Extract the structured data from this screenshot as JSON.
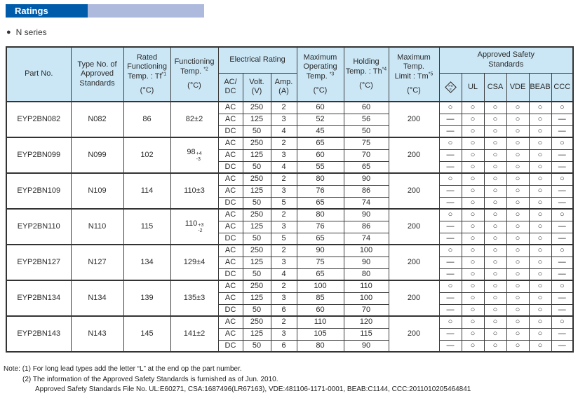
{
  "title_bar": {
    "label": "Ratings"
  },
  "series": {
    "bullet": "●",
    "label": "N series"
  },
  "table": {
    "header": {
      "part_no": "Part No.",
      "type_no": {
        "l1": "Type No. of",
        "l2": "Approved",
        "l3": "Standards"
      },
      "rated": {
        "l1": "Rated",
        "l2": "Functioning",
        "l3": "Temp. : Tf",
        "sup": "*1",
        "unit": "(°C)"
      },
      "functioning": {
        "l1": "Functioning",
        "l2": "Temp.",
        "sup": "*2",
        "unit": "(°C)"
      },
      "electrical": {
        "group": "Electrical Rating",
        "acdc_l1": "AC/",
        "acdc_l2": "DC",
        "volt_l1": "Volt.",
        "volt_l2": "(V)",
        "amp_l1": "Amp.",
        "amp_l2": "(A)"
      },
      "max_operating": {
        "l1": "Maximum",
        "l2": "Operating",
        "l3": "Temp.",
        "sup": "*3",
        "unit": "(°C)"
      },
      "holding": {
        "l1": "Holding",
        "l2": "Temp. : Th",
        "sup": "*4",
        "unit": "(°C)"
      },
      "max_limit": {
        "l1": "Maximum",
        "l2": "Temp.",
        "l3": "Limit : Tm",
        "sup": "*5",
        "unit": "(°C)"
      },
      "safety": {
        "group_l1": "Approved Safety",
        "group_l2": "Standards",
        "pse_l1": "PS",
        "pse_l2": "E",
        "cols": [
          "UL",
          "CSA",
          "VDE",
          "BEAB",
          "CCC"
        ],
        "col_keys": [
          "pse",
          "ul",
          "csa",
          "vde",
          "beab",
          "ccc"
        ]
      }
    },
    "symbols": {
      "approved": "○",
      "not_approved": "—"
    },
    "rows": [
      {
        "part": "EYP2BN082",
        "type": "N082",
        "rated": "86",
        "functioning": {
          "text": "82±2"
        },
        "limit": "200",
        "sub": [
          {
            "acdc": "AC",
            "volt": "250",
            "amp": "2",
            "max_op": "60",
            "holding": "60",
            "marks": [
              "○",
              "○",
              "○",
              "○",
              "○",
              "○"
            ]
          },
          {
            "acdc": "AC",
            "volt": "125",
            "amp": "3",
            "max_op": "52",
            "holding": "56",
            "marks": [
              "—",
              "○",
              "○",
              "○",
              "○",
              "—"
            ]
          },
          {
            "acdc": "DC",
            "volt": "50",
            "amp": "4",
            "max_op": "45",
            "holding": "50",
            "marks": [
              "—",
              "○",
              "○",
              "○",
              "○",
              "—"
            ]
          }
        ]
      },
      {
        "part": "EYP2BN099",
        "type": "N099",
        "rated": "102",
        "functioning": {
          "base": "98",
          "plus": "+4",
          "minus": "-3"
        },
        "limit": "200",
        "sub": [
          {
            "acdc": "AC",
            "volt": "250",
            "amp": "2",
            "max_op": "65",
            "holding": "75",
            "marks": [
              "○",
              "○",
              "○",
              "○",
              "○",
              "○"
            ]
          },
          {
            "acdc": "AC",
            "volt": "125",
            "amp": "3",
            "max_op": "60",
            "holding": "70",
            "marks": [
              "—",
              "○",
              "○",
              "○",
              "○",
              "—"
            ]
          },
          {
            "acdc": "DC",
            "volt": "50",
            "amp": "4",
            "max_op": "55",
            "holding": "65",
            "marks": [
              "—",
              "○",
              "○",
              "○",
              "○",
              "—"
            ]
          }
        ]
      },
      {
        "part": "EYP2BN109",
        "type": "N109",
        "rated": "114",
        "functioning": {
          "text": "110±3"
        },
        "limit": "200",
        "sub": [
          {
            "acdc": "AC",
            "volt": "250",
            "amp": "2",
            "max_op": "80",
            "holding": "90",
            "marks": [
              "○",
              "○",
              "○",
              "○",
              "○",
              "○"
            ]
          },
          {
            "acdc": "AC",
            "volt": "125",
            "amp": "3",
            "max_op": "76",
            "holding": "86",
            "marks": [
              "—",
              "○",
              "○",
              "○",
              "○",
              "—"
            ]
          },
          {
            "acdc": "DC",
            "volt": "50",
            "amp": "5",
            "max_op": "65",
            "holding": "74",
            "marks": [
              "—",
              "○",
              "○",
              "○",
              "○",
              "—"
            ]
          }
        ]
      },
      {
        "part": "EYP2BN110",
        "type": "N110",
        "rated": "115",
        "functioning": {
          "base": "110",
          "plus": "+3",
          "minus": "-2"
        },
        "limit": "200",
        "sub": [
          {
            "acdc": "AC",
            "volt": "250",
            "amp": "2",
            "max_op": "80",
            "holding": "90",
            "marks": [
              "○",
              "○",
              "○",
              "○",
              "○",
              "○"
            ]
          },
          {
            "acdc": "AC",
            "volt": "125",
            "amp": "3",
            "max_op": "76",
            "holding": "86",
            "marks": [
              "—",
              "○",
              "○",
              "○",
              "○",
              "—"
            ]
          },
          {
            "acdc": "DC",
            "volt": "50",
            "amp": "5",
            "max_op": "65",
            "holding": "74",
            "marks": [
              "—",
              "○",
              "○",
              "○",
              "○",
              "—"
            ]
          }
        ]
      },
      {
        "part": "EYP2BN127",
        "type": "N127",
        "rated": "134",
        "functioning": {
          "text": "129±4"
        },
        "limit": "200",
        "sub": [
          {
            "acdc": "AC",
            "volt": "250",
            "amp": "2",
            "max_op": "90",
            "holding": "100",
            "marks": [
              "○",
              "○",
              "○",
              "○",
              "○",
              "○"
            ]
          },
          {
            "acdc": "AC",
            "volt": "125",
            "amp": "3",
            "max_op": "75",
            "holding": "90",
            "marks": [
              "—",
              "○",
              "○",
              "○",
              "○",
              "—"
            ]
          },
          {
            "acdc": "DC",
            "volt": "50",
            "amp": "4",
            "max_op": "65",
            "holding": "80",
            "marks": [
              "—",
              "○",
              "○",
              "○",
              "○",
              "—"
            ]
          }
        ]
      },
      {
        "part": "EYP2BN134",
        "type": "N134",
        "rated": "139",
        "functioning": {
          "text": "135±3"
        },
        "limit": "200",
        "sub": [
          {
            "acdc": "AC",
            "volt": "250",
            "amp": "2",
            "max_op": "100",
            "holding": "110",
            "marks": [
              "○",
              "○",
              "○",
              "○",
              "○",
              "○"
            ]
          },
          {
            "acdc": "AC",
            "volt": "125",
            "amp": "3",
            "max_op": "85",
            "holding": "100",
            "marks": [
              "—",
              "○",
              "○",
              "○",
              "○",
              "—"
            ]
          },
          {
            "acdc": "DC",
            "volt": "50",
            "amp": "6",
            "max_op": "60",
            "holding": "70",
            "marks": [
              "—",
              "○",
              "○",
              "○",
              "○",
              "—"
            ]
          }
        ]
      },
      {
        "part": "EYP2BN143",
        "type": "N143",
        "rated": "145",
        "functioning": {
          "text": "141±2"
        },
        "limit": "200",
        "sub": [
          {
            "acdc": "AC",
            "volt": "250",
            "amp": "2",
            "max_op": "110",
            "holding": "120",
            "marks": [
              "○",
              "○",
              "○",
              "○",
              "○",
              "○"
            ]
          },
          {
            "acdc": "AC",
            "volt": "125",
            "amp": "3",
            "max_op": "105",
            "holding": "115",
            "marks": [
              "—",
              "○",
              "○",
              "○",
              "○",
              "—"
            ]
          },
          {
            "acdc": "DC",
            "volt": "50",
            "amp": "6",
            "max_op": "80",
            "holding": "90",
            "marks": [
              "—",
              "○",
              "○",
              "○",
              "○",
              "—"
            ]
          }
        ]
      }
    ]
  },
  "notes": {
    "label": "Note:",
    "items": [
      {
        "num": "(1)",
        "text": "For long lead types add the letter “L” at the end op the part number."
      },
      {
        "num": "(2)",
        "text": "The information of the Approved Safety Standards is furnished as of Jun. 2010."
      }
    ],
    "file_no": "Approved Safety Standards File No. UL:E60271, CSA:1687496(LR67163), VDE:481106-1171-0001, BEAB:C1144, CCC:2011010205464841"
  },
  "colors": {
    "title_dark_blue": "#005bab",
    "title_light_blue": "#aebadd",
    "header_blue": "#cbe7f6"
  }
}
